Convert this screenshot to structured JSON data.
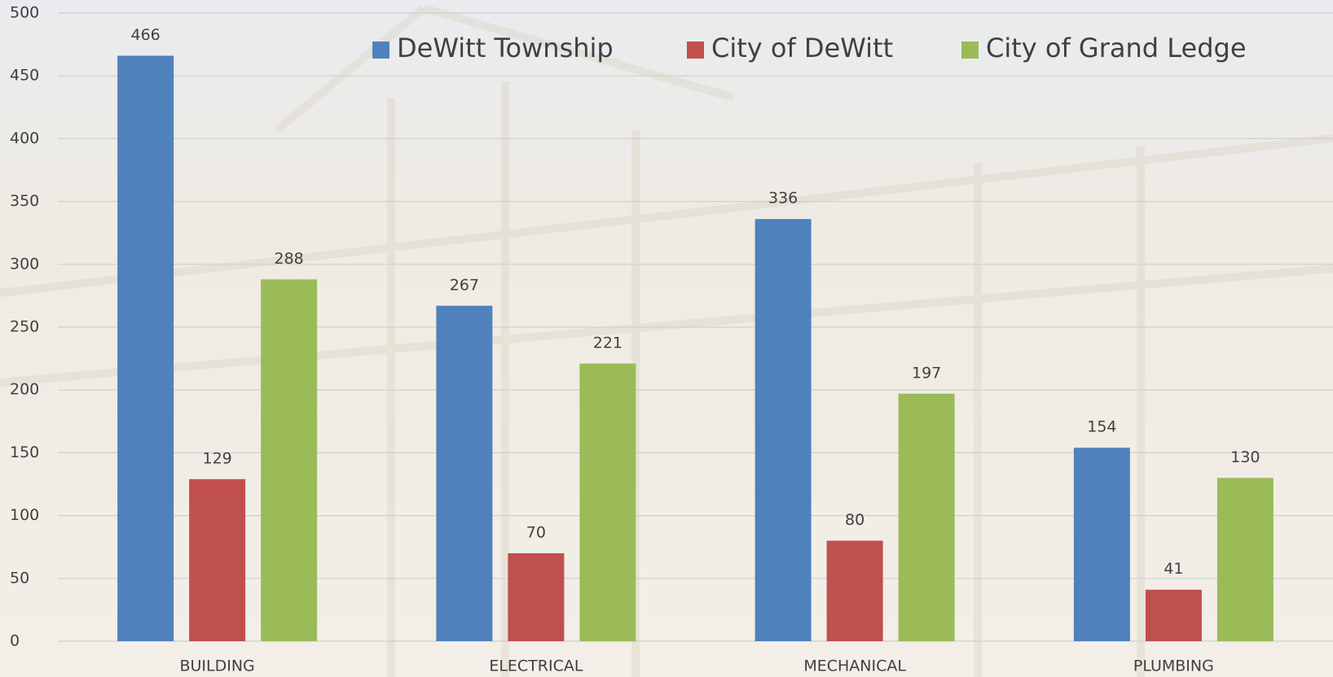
{
  "chart_data": {
    "type": "bar",
    "categories": [
      "BUILDING",
      "ELECTRICAL",
      "MECHANICAL",
      "PLUMBING"
    ],
    "series": [
      {
        "name": "DeWitt Township",
        "color": "#4f81bd",
        "values": [
          466,
          267,
          336,
          154
        ]
      },
      {
        "name": "City of DeWitt",
        "color": "#c0504d",
        "values": [
          129,
          70,
          80,
          41
        ]
      },
      {
        "name": "City of Grand Ledge",
        "color": "#9bbb59",
        "values": [
          288,
          221,
          197,
          130
        ]
      }
    ],
    "ylim": [
      0,
      500
    ],
    "yticks": [
      0,
      50,
      100,
      150,
      200,
      250,
      300,
      350,
      400,
      450,
      500
    ],
    "grid": true,
    "legend": "top"
  }
}
